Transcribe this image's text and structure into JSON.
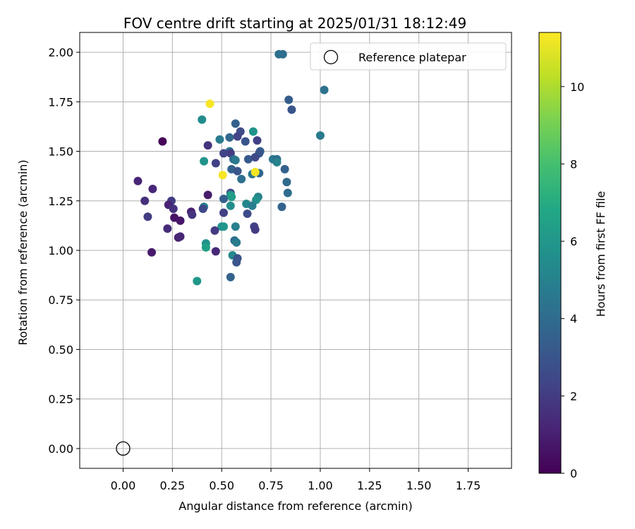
{
  "chart_data": {
    "type": "scatter",
    "title": "FOV centre drift starting at 2025/01/31 18:12:49",
    "xlabel": "Angular distance from reference (arcmin)",
    "ylabel": "Rotation from reference (arcmin)",
    "xlim": [
      -0.22,
      1.97
    ],
    "ylim": [
      -0.1,
      2.1
    ],
    "xticks": [
      "0.00",
      "0.25",
      "0.50",
      "0.75",
      "1.00",
      "1.25",
      "1.50",
      "1.75"
    ],
    "yticks": [
      "0.00",
      "0.25",
      "0.50",
      "0.75",
      "1.00",
      "1.25",
      "1.50",
      "1.75",
      "2.00"
    ],
    "grid": true,
    "legend": {
      "position": "top-right",
      "entries": [
        "Reference platepar"
      ]
    },
    "colorbar": {
      "label": "Hours from first FF file",
      "range": [
        0,
        11.4
      ],
      "ticks": [
        "0",
        "2",
        "4",
        "6",
        "8",
        "10"
      ],
      "colormap": "viridis"
    },
    "reference_point": {
      "x": 0.0,
      "y": 0.0
    },
    "points": [
      {
        "x": 0.79,
        "y": 1.99,
        "h": 4.2
      },
      {
        "x": 0.81,
        "y": 1.99,
        "h": 4.1
      },
      {
        "x": 1.02,
        "y": 1.81,
        "h": 4.3
      },
      {
        "x": 0.84,
        "y": 1.76,
        "h": 3.3
      },
      {
        "x": 0.855,
        "y": 1.71,
        "h": 3.0
      },
      {
        "x": 0.44,
        "y": 1.74,
        "h": 11.3
      },
      {
        "x": 0.4,
        "y": 1.66,
        "h": 5.5
      },
      {
        "x": 0.57,
        "y": 1.64,
        "h": 3.5
      },
      {
        "x": 0.66,
        "y": 1.6,
        "h": 5.8
      },
      {
        "x": 0.595,
        "y": 1.6,
        "h": 2.6
      },
      {
        "x": 1.0,
        "y": 1.58,
        "h": 4.6
      },
      {
        "x": 0.49,
        "y": 1.56,
        "h": 4.7
      },
      {
        "x": 0.54,
        "y": 1.57,
        "h": 3.8
      },
      {
        "x": 0.58,
        "y": 1.575,
        "h": 2.3
      },
      {
        "x": 0.62,
        "y": 1.55,
        "h": 3.0
      },
      {
        "x": 0.68,
        "y": 1.555,
        "h": 2.2
      },
      {
        "x": 0.2,
        "y": 1.55,
        "h": 0.2
      },
      {
        "x": 0.43,
        "y": 1.53,
        "h": 1.7
      },
      {
        "x": 0.54,
        "y": 1.5,
        "h": 4.4
      },
      {
        "x": 0.545,
        "y": 1.49,
        "h": 2.0
      },
      {
        "x": 0.51,
        "y": 1.49,
        "h": 2.3
      },
      {
        "x": 0.695,
        "y": 1.5,
        "h": 3.4
      },
      {
        "x": 0.69,
        "y": 1.49,
        "h": 3.0
      },
      {
        "x": 0.56,
        "y": 1.46,
        "h": 3.9
      },
      {
        "x": 0.57,
        "y": 1.455,
        "h": 4.6
      },
      {
        "x": 0.635,
        "y": 1.46,
        "h": 3.2
      },
      {
        "x": 0.67,
        "y": 1.47,
        "h": 2.5
      },
      {
        "x": 0.76,
        "y": 1.46,
        "h": 4.6
      },
      {
        "x": 0.78,
        "y": 1.46,
        "h": 4.1
      },
      {
        "x": 0.78,
        "y": 1.445,
        "h": 5.0
      },
      {
        "x": 0.41,
        "y": 1.45,
        "h": 5.8
      },
      {
        "x": 0.47,
        "y": 1.44,
        "h": 2.2
      },
      {
        "x": 0.82,
        "y": 1.41,
        "h": 3.5
      },
      {
        "x": 0.55,
        "y": 1.41,
        "h": 3.6
      },
      {
        "x": 0.58,
        "y": 1.4,
        "h": 3.0
      },
      {
        "x": 0.6,
        "y": 1.36,
        "h": 4.1
      },
      {
        "x": 0.655,
        "y": 1.385,
        "h": 4.4
      },
      {
        "x": 0.69,
        "y": 1.39,
        "h": 3.8
      },
      {
        "x": 0.67,
        "y": 1.395,
        "h": 11.2
      },
      {
        "x": 0.505,
        "y": 1.38,
        "h": 11.3
      },
      {
        "x": 0.075,
        "y": 1.35,
        "h": 1.2
      },
      {
        "x": 0.83,
        "y": 1.345,
        "h": 3.9
      },
      {
        "x": 0.15,
        "y": 1.31,
        "h": 1.3
      },
      {
        "x": 0.545,
        "y": 1.29,
        "h": 2.3
      },
      {
        "x": 0.545,
        "y": 1.28,
        "h": 6.0
      },
      {
        "x": 0.55,
        "y": 1.27,
        "h": 6.3
      },
      {
        "x": 0.43,
        "y": 1.28,
        "h": 0.9
      },
      {
        "x": 0.835,
        "y": 1.29,
        "h": 4.0
      },
      {
        "x": 0.685,
        "y": 1.27,
        "h": 5.1
      },
      {
        "x": 0.675,
        "y": 1.255,
        "h": 5.7
      },
      {
        "x": 0.51,
        "y": 1.26,
        "h": 3.4
      },
      {
        "x": 0.11,
        "y": 1.25,
        "h": 1.6
      },
      {
        "x": 0.245,
        "y": 1.25,
        "h": 2.0
      },
      {
        "x": 0.23,
        "y": 1.23,
        "h": 1.1
      },
      {
        "x": 0.625,
        "y": 1.235,
        "h": 5.2
      },
      {
        "x": 0.545,
        "y": 1.225,
        "h": 5.5
      },
      {
        "x": 0.655,
        "y": 1.225,
        "h": 4.8
      },
      {
        "x": 0.41,
        "y": 1.22,
        "h": 4.9
      },
      {
        "x": 0.805,
        "y": 1.22,
        "h": 3.6
      },
      {
        "x": 0.405,
        "y": 1.21,
        "h": 2.5
      },
      {
        "x": 0.255,
        "y": 1.21,
        "h": 1.6
      },
      {
        "x": 0.345,
        "y": 1.195,
        "h": 1.0
      },
      {
        "x": 0.51,
        "y": 1.19,
        "h": 2.2
      },
      {
        "x": 0.35,
        "y": 1.18,
        "h": 1.7
      },
      {
        "x": 0.63,
        "y": 1.185,
        "h": 2.6
      },
      {
        "x": 0.125,
        "y": 1.17,
        "h": 2.0
      },
      {
        "x": 0.26,
        "y": 1.165,
        "h": 0.6
      },
      {
        "x": 0.29,
        "y": 1.15,
        "h": 0.7
      },
      {
        "x": 0.5,
        "y": 1.12,
        "h": 5.7
      },
      {
        "x": 0.51,
        "y": 1.12,
        "h": 5.9
      },
      {
        "x": 0.57,
        "y": 1.12,
        "h": 4.9
      },
      {
        "x": 0.665,
        "y": 1.12,
        "h": 2.2
      },
      {
        "x": 0.225,
        "y": 1.11,
        "h": 1.4
      },
      {
        "x": 0.67,
        "y": 1.105,
        "h": 2.0
      },
      {
        "x": 0.465,
        "y": 1.1,
        "h": 2.0
      },
      {
        "x": 0.28,
        "y": 1.065,
        "h": 1.0
      },
      {
        "x": 0.29,
        "y": 1.07,
        "h": 1.2
      },
      {
        "x": 0.565,
        "y": 1.05,
        "h": 4.1
      },
      {
        "x": 0.42,
        "y": 1.035,
        "h": 5.8
      },
      {
        "x": 0.575,
        "y": 1.04,
        "h": 4.7
      },
      {
        "x": 0.42,
        "y": 1.015,
        "h": 6.4
      },
      {
        "x": 0.47,
        "y": 0.995,
        "h": 1.3
      },
      {
        "x": 0.145,
        "y": 0.99,
        "h": 0.8
      },
      {
        "x": 0.555,
        "y": 0.975,
        "h": 5.3
      },
      {
        "x": 0.58,
        "y": 0.96,
        "h": 2.8
      },
      {
        "x": 0.575,
        "y": 0.94,
        "h": 3.0
      },
      {
        "x": 0.545,
        "y": 0.865,
        "h": 3.6
      },
      {
        "x": 0.375,
        "y": 0.845,
        "h": 6.0
      }
    ]
  }
}
